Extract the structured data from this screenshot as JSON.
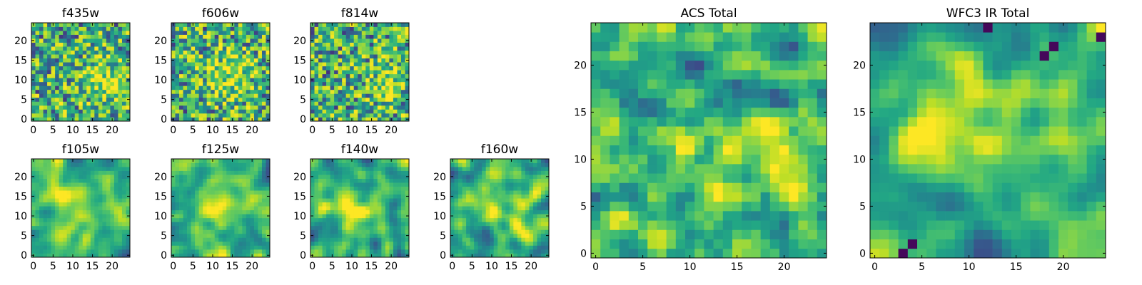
{
  "chart_data": [
    {
      "type": "heatmap",
      "title": "f435w",
      "grid_size": 25,
      "xlim": [
        0,
        24
      ],
      "ylim": [
        0,
        24
      ],
      "xticks": [
        0,
        5,
        10,
        15,
        20
      ],
      "yticks": [
        0,
        5,
        10,
        15,
        20
      ],
      "colormap": "viridis",
      "texture": "noise",
      "seed": 11,
      "blobs": [
        {
          "x": 18,
          "y": 10,
          "sigma": 4,
          "amp": 0.35
        }
      ]
    },
    {
      "type": "heatmap",
      "title": "f606w",
      "grid_size": 25,
      "xlim": [
        0,
        24
      ],
      "ylim": [
        0,
        24
      ],
      "xticks": [
        0,
        5,
        10,
        15,
        20
      ],
      "yticks": [
        0,
        5,
        10,
        15,
        20
      ],
      "colormap": "viridis",
      "texture": "noise",
      "seed": 23,
      "blobs": [
        {
          "x": 14,
          "y": 11,
          "sigma": 4,
          "amp": 0.35
        }
      ]
    },
    {
      "type": "heatmap",
      "title": "f814w",
      "grid_size": 25,
      "xlim": [
        0,
        24
      ],
      "ylim": [
        0,
        24
      ],
      "xticks": [
        0,
        5,
        10,
        15,
        20
      ],
      "yticks": [
        0,
        5,
        10,
        15,
        20
      ],
      "colormap": "viridis",
      "texture": "noise",
      "seed": 37,
      "blobs": [
        {
          "x": 19,
          "y": 9,
          "sigma": 3,
          "amp": 0.35
        }
      ]
    },
    {
      "type": "heatmap",
      "title": "f105w",
      "grid_size": 25,
      "xlim": [
        0,
        24
      ],
      "ylim": [
        0,
        24
      ],
      "xticks": [
        0,
        5,
        10,
        15,
        20
      ],
      "yticks": [
        0,
        5,
        10,
        15,
        20
      ],
      "colormap": "viridis",
      "texture": "smooth",
      "seed": 41,
      "blobs": [
        {
          "x": 12,
          "y": 12,
          "sigma": 5,
          "amp": 0.3
        }
      ]
    },
    {
      "type": "heatmap",
      "title": "f125w",
      "grid_size": 25,
      "xlim": [
        0,
        24
      ],
      "ylim": [
        0,
        24
      ],
      "xticks": [
        0,
        5,
        10,
        15,
        20
      ],
      "yticks": [
        0,
        5,
        10,
        15,
        20
      ],
      "colormap": "viridis",
      "texture": "smooth",
      "seed": 53,
      "blobs": [
        {
          "x": 12,
          "y": 12,
          "sigma": 5,
          "amp": 0.3
        }
      ]
    },
    {
      "type": "heatmap",
      "title": "f140w",
      "grid_size": 25,
      "xlim": [
        0,
        24
      ],
      "ylim": [
        0,
        24
      ],
      "xticks": [
        0,
        5,
        10,
        15,
        20
      ],
      "yticks": [
        0,
        5,
        10,
        15,
        20
      ],
      "colormap": "viridis",
      "texture": "smooth",
      "seed": 67,
      "blobs": [
        {
          "x": 10,
          "y": 12,
          "sigma": 4,
          "amp": 0.3
        }
      ]
    },
    {
      "type": "heatmap",
      "title": "f160w",
      "grid_size": 25,
      "xlim": [
        0,
        24
      ],
      "ylim": [
        0,
        24
      ],
      "xticks": [
        0,
        5,
        10,
        15,
        20
      ],
      "yticks": [
        0,
        5,
        10,
        15,
        20
      ],
      "colormap": "viridis",
      "texture": "smooth",
      "seed": 79,
      "blobs": [
        {
          "x": 11,
          "y": 12,
          "sigma": 4,
          "amp": 0.35
        }
      ]
    },
    {
      "type": "heatmap",
      "title": "ACS Total",
      "grid_size": 25,
      "xlim": [
        0,
        24
      ],
      "ylim": [
        0,
        24
      ],
      "xticks": [
        0,
        5,
        10,
        15,
        20
      ],
      "yticks": [
        0,
        5,
        10,
        15,
        20
      ],
      "colormap": "viridis",
      "texture": "noise-soft",
      "seed": 97,
      "blobs": [
        {
          "x": 17,
          "y": 11,
          "sigma": 4,
          "amp": 0.3
        }
      ]
    },
    {
      "type": "heatmap",
      "title": "WFC3 IR Total",
      "grid_size": 25,
      "xlim": [
        0,
        24
      ],
      "ylim": [
        0,
        24
      ],
      "xticks": [
        0,
        5,
        10,
        15,
        20
      ],
      "yticks": [
        0,
        5,
        10,
        15,
        20
      ],
      "colormap": "viridis",
      "texture": "smooth",
      "seed": 109,
      "blobs": [
        {
          "x": 10,
          "y": 13,
          "sigma": 4,
          "amp": 0.4
        }
      ],
      "dark_spots": [
        {
          "x": 4,
          "y": 1
        },
        {
          "x": 3,
          "y": 0
        },
        {
          "x": 18,
          "y": 21
        },
        {
          "x": 19,
          "y": 22
        },
        {
          "x": 24,
          "y": 23
        },
        {
          "x": 12,
          "y": 24
        }
      ]
    }
  ]
}
